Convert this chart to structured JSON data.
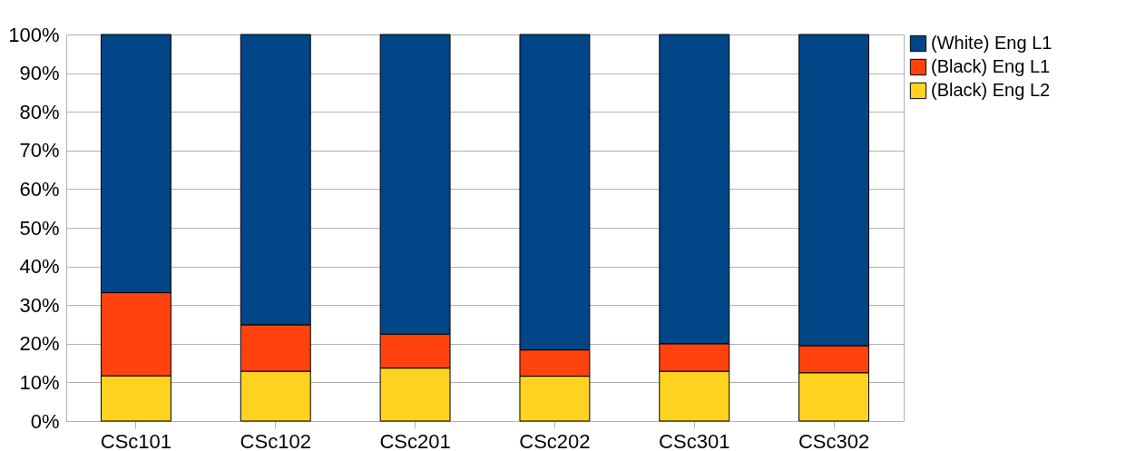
{
  "chart_data": {
    "type": "bar",
    "stacked": true,
    "categories": [
      "CSc101",
      "CSc102",
      "CSc201",
      "CSc202",
      "CSc301",
      "CSc302"
    ],
    "series": [
      {
        "name": "(Black) Eng L2",
        "color": "#ffd320",
        "values": [
          11.7,
          12.9,
          13.7,
          11.6,
          12.9,
          12.5
        ]
      },
      {
        "name": "(Black) Eng L1",
        "color": "#ff420e",
        "values": [
          21.5,
          12.0,
          8.8,
          6.8,
          7.1,
          7.0
        ]
      },
      {
        "name": "(White) Eng L1",
        "color": "#004586",
        "values": [
          66.8,
          75.1,
          77.5,
          81.6,
          80.0,
          80.5
        ]
      }
    ],
    "ylim": [
      0,
      100
    ],
    "yticks": [
      {
        "value": 0,
        "label": "0%"
      },
      {
        "value": 10,
        "label": "10%"
      },
      {
        "value": 20,
        "label": "20%"
      },
      {
        "value": 30,
        "label": "30%"
      },
      {
        "value": 40,
        "label": "40%"
      },
      {
        "value": 50,
        "label": "50%"
      },
      {
        "value": 60,
        "label": "60%"
      },
      {
        "value": 70,
        "label": "70%"
      },
      {
        "value": 80,
        "label": "80%"
      },
      {
        "value": 90,
        "label": "90%"
      },
      {
        "value": 100,
        "label": "100%"
      }
    ],
    "grid": "y",
    "legend": "right"
  }
}
